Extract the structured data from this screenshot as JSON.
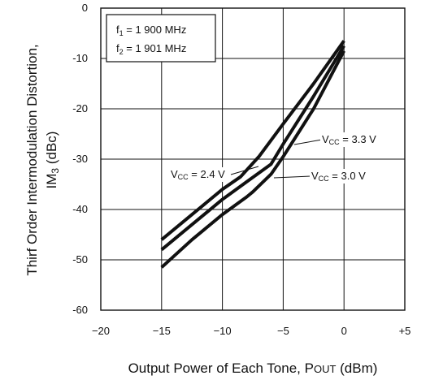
{
  "chart_data": {
    "type": "line",
    "xlabel": "Output Power of Each Tone, Pout (dBm)",
    "xlabel_parts": {
      "main": "Output Power of Each Tone, P",
      "sub": "OUT",
      "unit": " (dBm)"
    },
    "ylabel_line1": "Thirf Order Intermodulation Distortion,",
    "ylabel_line2_parts": {
      "main": "IM",
      "sub": "3",
      "unit": " (dBc)"
    },
    "xlim": [
      -20,
      5
    ],
    "ylim": [
      -60,
      0
    ],
    "x_ticks": [
      -20,
      -15,
      -10,
      -5,
      0,
      5
    ],
    "x_tick_labels": [
      "−20",
      "−15",
      "−10",
      "−5",
      "0",
      "+5"
    ],
    "y_ticks": [
      0,
      -10,
      -20,
      -30,
      -40,
      -50,
      -60
    ],
    "y_tick_labels": [
      "0",
      "-10",
      "-20",
      "-30",
      "-40",
      "-50",
      "-60"
    ],
    "grid": true,
    "legend": {
      "placement": "top-left",
      "lines": [
        {
          "main": "f",
          "sub": "1",
          "rest": " = 1 900 MHz"
        },
        {
          "main": "f",
          "sub": "2",
          "rest": " = 1 901 MHz"
        }
      ]
    },
    "series": [
      {
        "name": "Vcc = 2.4 V",
        "label_parts": {
          "main": "V",
          "sub": "CC",
          "rest": " = 2.4 V"
        },
        "x": [
          -15,
          -12.5,
          -10,
          -8.5,
          -7,
          -5,
          -2.5,
          0
        ],
        "y": [
          -46,
          -41,
          -36,
          -33.5,
          -29.5,
          -23,
          -15,
          -6.5
        ]
      },
      {
        "name": "Vcc = 3.3 V",
        "label_parts": {
          "main": "V",
          "sub": "CC",
          "rest": " = 3.3 V"
        },
        "x": [
          -15,
          -12.5,
          -10,
          -8,
          -6,
          -5,
          -2.5,
          0
        ],
        "y": [
          -48,
          -43,
          -38,
          -34.5,
          -31,
          -27,
          -17.5,
          -7.5
        ]
      },
      {
        "name": "Vcc = 3.0 V",
        "label_parts": {
          "main": "V",
          "sub": "CC",
          "rest": " = 3.0 V"
        },
        "x": [
          -15,
          -12.5,
          -10,
          -8,
          -7.5,
          -6,
          -5,
          -2.5,
          0
        ],
        "y": [
          -51.5,
          -46,
          -41,
          -37.5,
          -36.5,
          -33,
          -29.5,
          -20,
          -8.5
        ]
      }
    ]
  }
}
